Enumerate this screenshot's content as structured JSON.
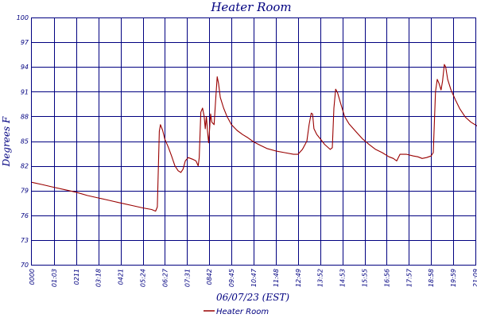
{
  "chart_data": {
    "type": "line",
    "title": "Heater Room",
    "xlabel": "06/07/23 (EST)",
    "ylabel": "Degrees F",
    "x_tick_labels": [
      "0000",
      "01:03",
      "0211",
      "03:18",
      "0421",
      "05:24",
      "06:27",
      "07:31",
      "0842",
      "09:45",
      "10:47",
      "11:48",
      "12:49",
      "13:52",
      "14:53",
      "15:55",
      "16:56",
      "17:57",
      "18:58",
      "19:59",
      "21:09"
    ],
    "y_tick_labels": [
      "70",
      "73",
      "76",
      "79",
      "82",
      "85",
      "88",
      "91",
      "94",
      "97",
      "100"
    ],
    "ylim": [
      70,
      100
    ],
    "grid": true,
    "legend_position": "bottom-center",
    "series": [
      {
        "name": "Heater Room",
        "color": "#990000",
        "points": [
          [
            0.0,
            80.0
          ],
          [
            0.5,
            79.7
          ],
          [
            1.0,
            79.4
          ],
          [
            1.5,
            79.1
          ],
          [
            2.0,
            78.8
          ],
          [
            2.5,
            78.4
          ],
          [
            3.0,
            78.1
          ],
          [
            3.5,
            77.8
          ],
          [
            4.0,
            77.5
          ],
          [
            4.5,
            77.2
          ],
          [
            5.0,
            76.9
          ],
          [
            5.4,
            76.7
          ],
          [
            5.58,
            76.5
          ],
          [
            5.66,
            77.0
          ],
          [
            5.75,
            86.2
          ],
          [
            5.8,
            87.0
          ],
          [
            5.9,
            86.3
          ],
          [
            6.0,
            85.2
          ],
          [
            6.15,
            84.3
          ],
          [
            6.3,
            83.2
          ],
          [
            6.45,
            82.0
          ],
          [
            6.6,
            81.4
          ],
          [
            6.72,
            81.2
          ],
          [
            6.82,
            81.6
          ],
          [
            6.92,
            82.6
          ],
          [
            7.05,
            83.0
          ],
          [
            7.25,
            82.8
          ],
          [
            7.4,
            82.6
          ],
          [
            7.5,
            82.0
          ],
          [
            7.55,
            83.0
          ],
          [
            7.62,
            88.5
          ],
          [
            7.7,
            89.0
          ],
          [
            7.77,
            88.0
          ],
          [
            7.82,
            86.5
          ],
          [
            7.87,
            88.0
          ],
          [
            7.93,
            86.0
          ],
          [
            7.97,
            84.8
          ],
          [
            8.0,
            85.8
          ],
          [
            8.06,
            88.3
          ],
          [
            8.12,
            87.3
          ],
          [
            8.22,
            87.0
          ],
          [
            8.3,
            90.5
          ],
          [
            8.36,
            92.8
          ],
          [
            8.42,
            92.0
          ],
          [
            8.5,
            90.3
          ],
          [
            8.65,
            89.0
          ],
          [
            8.8,
            88.0
          ],
          [
            9.0,
            87.0
          ],
          [
            9.25,
            86.3
          ],
          [
            9.5,
            85.8
          ],
          [
            9.75,
            85.4
          ],
          [
            10.0,
            84.9
          ],
          [
            10.3,
            84.5
          ],
          [
            10.6,
            84.1
          ],
          [
            11.0,
            83.8
          ],
          [
            11.4,
            83.6
          ],
          [
            11.8,
            83.4
          ],
          [
            12.0,
            83.4
          ],
          [
            12.2,
            84.0
          ],
          [
            12.4,
            85.0
          ],
          [
            12.5,
            87.0
          ],
          [
            12.6,
            88.4
          ],
          [
            12.66,
            88.3
          ],
          [
            12.72,
            86.5
          ],
          [
            12.85,
            85.8
          ],
          [
            13.0,
            85.3
          ],
          [
            13.2,
            84.6
          ],
          [
            13.45,
            84.0
          ],
          [
            13.55,
            84.2
          ],
          [
            13.62,
            89.0
          ],
          [
            13.7,
            91.3
          ],
          [
            13.78,
            90.9
          ],
          [
            13.9,
            89.8
          ],
          [
            14.1,
            88.0
          ],
          [
            14.3,
            87.1
          ],
          [
            14.6,
            86.2
          ],
          [
            14.9,
            85.3
          ],
          [
            15.2,
            84.6
          ],
          [
            15.5,
            84.0
          ],
          [
            15.8,
            83.6
          ],
          [
            16.1,
            83.1
          ],
          [
            16.3,
            82.9
          ],
          [
            16.45,
            82.6
          ],
          [
            16.6,
            83.4
          ],
          [
            16.9,
            83.4
          ],
          [
            17.2,
            83.2
          ],
          [
            17.4,
            83.1
          ],
          [
            17.6,
            82.9
          ],
          [
            17.8,
            83.0
          ],
          [
            18.0,
            83.2
          ],
          [
            18.1,
            83.6
          ],
          [
            18.2,
            91.0
          ],
          [
            18.28,
            92.5
          ],
          [
            18.36,
            92.0
          ],
          [
            18.45,
            91.2
          ],
          [
            18.52,
            92.3
          ],
          [
            18.6,
            94.3
          ],
          [
            18.66,
            94.0
          ],
          [
            18.75,
            92.5
          ],
          [
            18.9,
            91.2
          ],
          [
            19.1,
            90.0
          ],
          [
            19.3,
            88.9
          ],
          [
            19.55,
            87.9
          ],
          [
            19.8,
            87.3
          ],
          [
            20.1,
            86.8
          ],
          [
            20.4,
            86.3
          ],
          [
            20.65,
            85.9
          ],
          [
            21.0,
            85.7
          ]
        ]
      }
    ]
  }
}
